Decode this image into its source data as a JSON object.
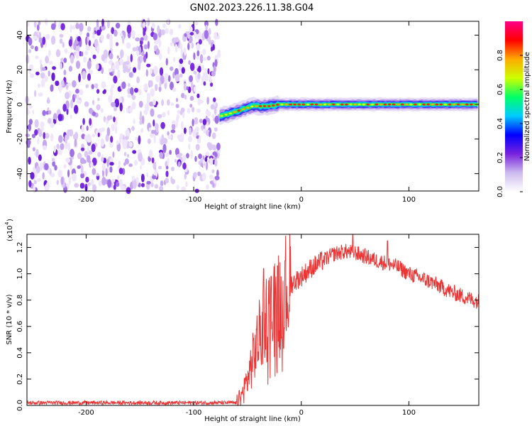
{
  "title": "GN02.2023.226.11.38.G04",
  "chart_data": [
    {
      "type": "heatmap",
      "xlabel": "Height of straight line (km)",
      "ylabel": "Frequency (Hz)",
      "xlim": [
        -255,
        165
      ],
      "ylim": [
        -50,
        48
      ],
      "xticks": [
        -200,
        -100,
        0,
        100
      ],
      "yticks": [
        -40,
        -20,
        0,
        20,
        40
      ],
      "colorbar": {
        "label": "Normalized spectral amplitude",
        "range": [
          0,
          1
        ],
        "ticks": [
          "0.0",
          "0.2",
          "0.4",
          "0.6",
          "0.8"
        ],
        "colors": [
          "#ffffff",
          "#ccbbee",
          "#7722dd",
          "#0000ff",
          "#00ccff",
          "#00ff66",
          "#ccff00",
          "#ffaa00",
          "#ff0000",
          "#ff0088"
        ]
      },
      "regions": [
        {
          "name": "noise",
          "x": [
            -255,
            -76
          ],
          "y": [
            -50,
            48
          ]
        },
        {
          "name": "signal",
          "x": [
            -76,
            165
          ],
          "trace_y_at": [
            [
              -76,
              -7
            ],
            [
              -60,
              -4
            ],
            [
              -45,
              -1
            ],
            [
              -30,
              -1
            ],
            [
              -20,
              0
            ],
            [
              0,
              0
            ],
            [
              165,
              0
            ]
          ]
        }
      ]
    },
    {
      "type": "line",
      "xlabel": "Height of straight line (km)",
      "ylabel": "SNR (10 * v/v)",
      "yscale_note": "(x10",
      "yscale_exp": "4",
      "xlim": [
        -255,
        165
      ],
      "ylim": [
        0,
        1.3
      ],
      "xticks": [
        -200,
        -100,
        0,
        100
      ],
      "yticks": [
        "0.0",
        "0.2",
        "0.4",
        "0.6",
        "0.8",
        "1.0",
        "1.2"
      ],
      "color": "#ee3333",
      "envelope": [
        [
          -255,
          0.02
        ],
        [
          -60,
          0.02
        ],
        [
          -55,
          0.08
        ],
        [
          -50,
          0.2
        ],
        [
          -45,
          0.35
        ],
        [
          -40,
          0.5
        ],
        [
          -35,
          0.62
        ],
        [
          -30,
          0.7
        ],
        [
          -25,
          0.75
        ],
        [
          -20,
          0.8
        ],
        [
          -15,
          0.88
        ],
        [
          -10,
          0.92
        ],
        [
          -5,
          0.95
        ],
        [
          0,
          0.98
        ],
        [
          10,
          1.05
        ],
        [
          20,
          1.1
        ],
        [
          30,
          1.15
        ],
        [
          40,
          1.17
        ],
        [
          50,
          1.16
        ],
        [
          60,
          1.13
        ],
        [
          70,
          1.1
        ],
        [
          80,
          1.08
        ],
        [
          90,
          1.05
        ],
        [
          100,
          1.0
        ],
        [
          110,
          0.97
        ],
        [
          120,
          0.94
        ],
        [
          130,
          0.9
        ],
        [
          140,
          0.86
        ],
        [
          150,
          0.83
        ],
        [
          160,
          0.8
        ],
        [
          165,
          0.79
        ]
      ],
      "peaks": [
        [
          -35,
          1.04
        ],
        [
          -28,
          0.98
        ],
        [
          -22,
          1.06
        ],
        [
          -15,
          1.1
        ],
        [
          48,
          1.3
        ],
        [
          80,
          1.25
        ]
      ]
    }
  ]
}
